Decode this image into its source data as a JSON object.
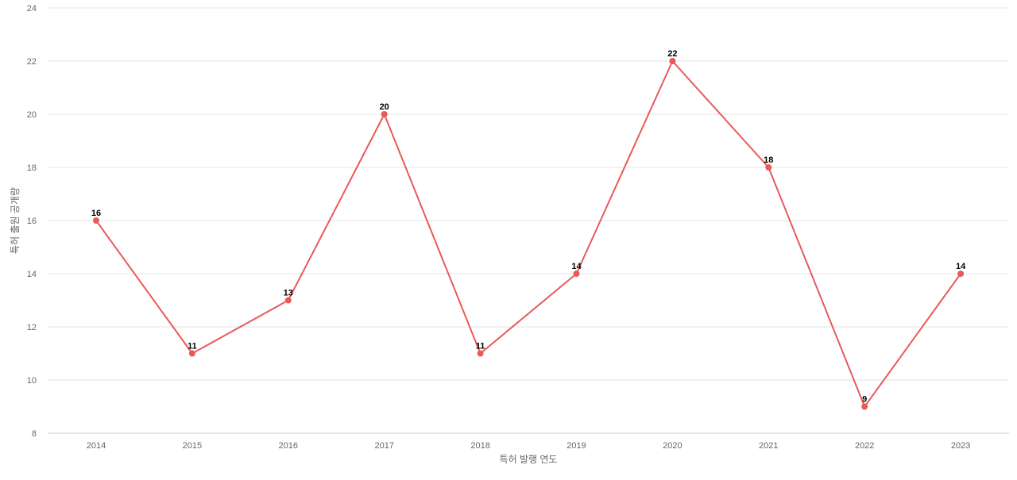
{
  "chart_data": {
    "type": "line",
    "x": [
      "2014",
      "2015",
      "2016",
      "2017",
      "2018",
      "2019",
      "2020",
      "2021",
      "2022",
      "2023"
    ],
    "series": [
      {
        "values": [
          16,
          11,
          13,
          20,
          11,
          14,
          22,
          18,
          9,
          14
        ],
        "color": "#e85a5a"
      }
    ],
    "xlabel": "특허 발행 연도",
    "ylabel": "특허 출원 공개량",
    "ylim": [
      8,
      24
    ],
    "yticks": [
      8,
      10,
      12,
      14,
      16,
      18,
      20,
      22,
      24
    ],
    "grid": true,
    "data_labels": true
  }
}
